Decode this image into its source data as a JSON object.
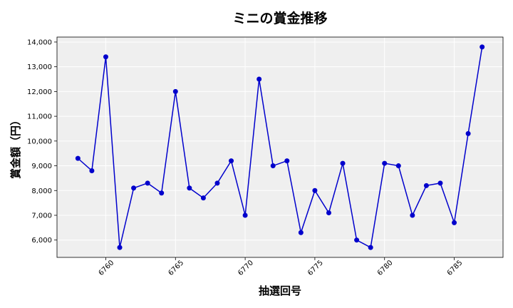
{
  "chart_data": {
    "type": "line",
    "title": "ミニの賞金推移",
    "xlabel": "抽選回号",
    "ylabel": "賞金額（円）",
    "xlim": [
      6756.5,
      6788.5
    ],
    "ylim": [
      5300,
      14200
    ],
    "xticks": [
      6760,
      6765,
      6770,
      6775,
      6780,
      6785
    ],
    "xtick_labels": [
      "6760",
      "6765",
      "6770",
      "6775",
      "6780",
      "6785"
    ],
    "yticks": [
      6000,
      7000,
      8000,
      9000,
      10000,
      11000,
      12000,
      13000,
      14000
    ],
    "ytick_labels": [
      "6,000",
      "7,000",
      "8,000",
      "9,000",
      "10,000",
      "11,000",
      "12,000",
      "13,000",
      "14,000"
    ],
    "grid": true,
    "colors": {
      "line": "#0000cc",
      "plot_bg": "#efefef",
      "grid": "#ffffff"
    },
    "series": [
      {
        "x": [
          6758,
          6759,
          6760,
          6761,
          6762,
          6763,
          6764,
          6765,
          6766,
          6767,
          6768,
          6769,
          6770,
          6771,
          6772,
          6773,
          6774,
          6775,
          6776,
          6777,
          6778,
          6779,
          6780,
          6781,
          6782,
          6783,
          6784,
          6785,
          6786,
          6787
        ],
        "values": [
          9300,
          8800,
          13400,
          5700,
          8100,
          8300,
          7900,
          12000,
          8100,
          7700,
          8300,
          9200,
          7000,
          12500,
          9000,
          9200,
          6300,
          8000,
          7100,
          9100,
          6000,
          5700,
          9100,
          9000,
          7000,
          8200,
          8300,
          6700,
          10300,
          13800
        ]
      }
    ]
  }
}
